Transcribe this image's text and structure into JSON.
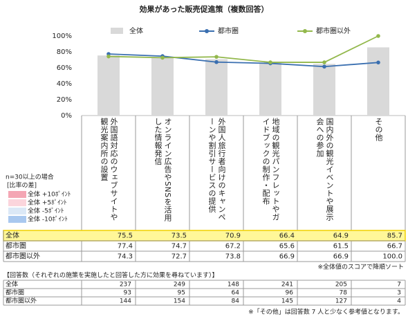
{
  "chart_data": {
    "type": "bar-line",
    "title": "効果があった販売促進策（複数回答）",
    "categories": [
      "外国語対応のウェブサイトや観光案内所の設置",
      "オンライン広告やSNSを活用した情報発信",
      "外国人旅行者向けのキャンペーンや割引サービスの提供",
      "地域の観光パンフレットやガイドブックの制作・配布",
      "国内外の観光イベントや展示会への参加",
      "その他"
    ],
    "series": [
      {
        "name": "全体",
        "type": "bar",
        "color": "#d9d9d9",
        "values": [
          75.5,
          73.5,
          70.9,
          66.4,
          64.9,
          85.7
        ]
      },
      {
        "name": "都市圏",
        "type": "line",
        "color": "#3a6fb0",
        "values": [
          77.4,
          74.7,
          67.2,
          65.6,
          61.5,
          66.7
        ]
      },
      {
        "name": "都市圏以外",
        "type": "line",
        "color": "#93b84c",
        "values": [
          74.3,
          72.7,
          73.8,
          66.9,
          66.9,
          100.0
        ],
        "value_labels": [
          "74.3",
          "72.7",
          "73.8",
          "66.9",
          "66.9",
          "100.0"
        ]
      }
    ],
    "ylim": [
      0,
      100
    ],
    "yticks": [
      {
        "value": 0,
        "label": "0%"
      },
      {
        "value": 20,
        "label": "20%"
      },
      {
        "value": 40,
        "label": "40%"
      },
      {
        "value": 60,
        "label": "60%"
      },
      {
        "value": 80,
        "label": "80%"
      },
      {
        "value": 100,
        "label": "100%"
      }
    ],
    "grid": false,
    "diff_legend": {
      "title": "n=30以上の場合",
      "subtitle": "[比率の差]",
      "items": [
        {
          "label": "全体 +10ﾎﾟｲﾝﾄ",
          "color": "#f4a6b4"
        },
        {
          "label": "全体 +5ﾎﾟｲﾝﾄ",
          "color": "#fbd5dc"
        },
        {
          "label": "全体 -5ﾎﾟｲﾝﾄ",
          "color": "#dbe8f6"
        },
        {
          "label": "全体 -10ﾎﾟｲﾝﾄ",
          "color": "#a9c8ef"
        }
      ]
    },
    "sort_note": "※全体値のスコアで降順ソート",
    "count_table": {
      "title": "【回答数（それぞれの施策を実施したと回答した方に効果を尋ねています）】",
      "rows": [
        {
          "label": "全体",
          "values": [
            237,
            249,
            148,
            241,
            205,
            7
          ]
        },
        {
          "label": "都市圏",
          "values": [
            93,
            95,
            64,
            96,
            78,
            3
          ]
        },
        {
          "label": "都市圏以外",
          "values": [
            144,
            154,
            84,
            145,
            127,
            4
          ]
        }
      ]
    },
    "count_note": "※「その他」は回答数 7 人と少なく参考値となります。"
  }
}
